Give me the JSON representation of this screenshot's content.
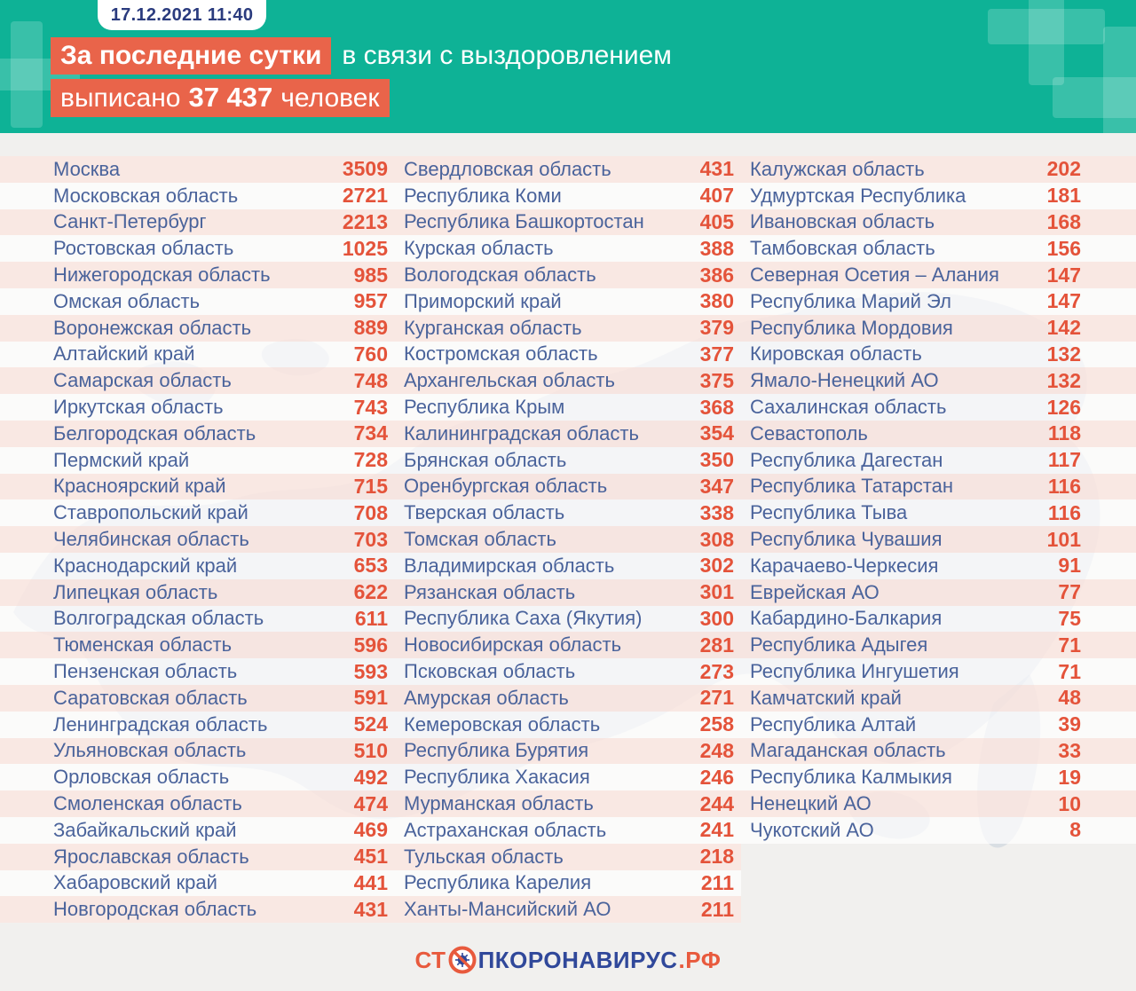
{
  "header": {
    "date_badge": "17.12.2021 11:40",
    "line1_highlight": "За последние сутки",
    "line1_rest": "в связи с выздоровлением",
    "line2_part1": "выписано",
    "line2_value": "37 437",
    "line2_part2": "человек"
  },
  "footer": {
    "logo_prefix": "СТ",
    "logo_middle": "ПКОРОНАВИРУС",
    "logo_suffix": ".РФ",
    "logo_icon": "no-virus-icon"
  },
  "icons": {
    "header_decoration": "plus-cross-icon",
    "logo": "no-virus-icon"
  },
  "colors": {
    "teal_background": "#0eb296",
    "highlight_orange": "#e9644a",
    "value_orange": "#e4533a",
    "region_navy": "#4a639b",
    "stripe_pink": "#fae6e0",
    "stripe_white": "#ffffff",
    "body_background": "#f1f0ee"
  },
  "chart_data": {
    "type": "table",
    "title": "За последние сутки в связи с выздоровлением выписано 37 437 человек",
    "date": "17.12.2021 11:40",
    "total_discharged": 37437,
    "columns": [
      {
        "rows": [
          {
            "region": "Москва",
            "value": 3509
          },
          {
            "region": "Московская область",
            "value": 2721
          },
          {
            "region": "Санкт-Петербург",
            "value": 2213
          },
          {
            "region": "Ростовская область",
            "value": 1025
          },
          {
            "region": "Нижегородская область",
            "value": 985
          },
          {
            "region": "Омская область",
            "value": 957
          },
          {
            "region": "Воронежская область",
            "value": 889
          },
          {
            "region": "Алтайский край",
            "value": 760
          },
          {
            "region": "Самарская область",
            "value": 748
          },
          {
            "region": "Иркутская область",
            "value": 743
          },
          {
            "region": "Белгородская область",
            "value": 734
          },
          {
            "region": "Пермский край",
            "value": 728
          },
          {
            "region": "Красноярский край",
            "value": 715
          },
          {
            "region": "Ставропольский край",
            "value": 708
          },
          {
            "region": "Челябинская область",
            "value": 703
          },
          {
            "region": "Краснодарский край",
            "value": 653
          },
          {
            "region": "Липецкая область",
            "value": 622
          },
          {
            "region": "Волгоградская область",
            "value": 611
          },
          {
            "region": "Тюменская область",
            "value": 596
          },
          {
            "region": "Пензенская область",
            "value": 593
          },
          {
            "region": "Саратовская область",
            "value": 591
          },
          {
            "region": "Ленинградская область",
            "value": 524
          },
          {
            "region": "Ульяновская область",
            "value": 510
          },
          {
            "region": "Орловская область",
            "value": 492
          },
          {
            "region": "Смоленская область",
            "value": 474
          },
          {
            "region": "Забайкальский край",
            "value": 469
          },
          {
            "region": "Ярославская область",
            "value": 451
          },
          {
            "region": "Хабаровский край",
            "value": 441
          },
          {
            "region": "Новгородская область",
            "value": 431
          }
        ]
      },
      {
        "rows": [
          {
            "region": "Свердловская область",
            "value": 431
          },
          {
            "region": "Республика Коми",
            "value": 407
          },
          {
            "region": "Республика Башкортостан",
            "value": 405
          },
          {
            "region": "Курская область",
            "value": 388
          },
          {
            "region": "Вологодская область",
            "value": 386
          },
          {
            "region": "Приморский край",
            "value": 380
          },
          {
            "region": "Курганская область",
            "value": 379
          },
          {
            "region": "Костромская область",
            "value": 377
          },
          {
            "region": "Архангельская область",
            "value": 375
          },
          {
            "region": "Республика Крым",
            "value": 368
          },
          {
            "region": "Калининградская область",
            "value": 354
          },
          {
            "region": "Брянская область",
            "value": 350
          },
          {
            "region": "Оренбургская область",
            "value": 347
          },
          {
            "region": "Тверская область",
            "value": 338
          },
          {
            "region": "Томская область",
            "value": 308
          },
          {
            "region": "Владимирская область",
            "value": 302
          },
          {
            "region": "Рязанская область",
            "value": 301
          },
          {
            "region": "Республика Саха (Якутия)",
            "value": 300
          },
          {
            "region": "Новосибирская область",
            "value": 281
          },
          {
            "region": "Псковская область",
            "value": 273
          },
          {
            "region": "Амурская область",
            "value": 271
          },
          {
            "region": "Кемеровская область",
            "value": 258
          },
          {
            "region": "Республика Бурятия",
            "value": 248
          },
          {
            "region": "Республика Хакасия",
            "value": 246
          },
          {
            "region": "Мурманская область",
            "value": 244
          },
          {
            "region": "Астраханская область",
            "value": 241
          },
          {
            "region": "Тульская область",
            "value": 218
          },
          {
            "region": "Республика Карелия",
            "value": 211
          },
          {
            "region": "Ханты-Мансийский АО",
            "value": 211
          }
        ]
      },
      {
        "rows": [
          {
            "region": "Калужская область",
            "value": 202
          },
          {
            "region": "Удмуртская Республика",
            "value": 181
          },
          {
            "region": "Ивановская область",
            "value": 168
          },
          {
            "region": "Тамбовская область",
            "value": 156
          },
          {
            "region": "Северная Осетия – Алания",
            "value": 147
          },
          {
            "region": "Республика Марий Эл",
            "value": 147
          },
          {
            "region": "Республика Мордовия",
            "value": 142
          },
          {
            "region": "Кировская область",
            "value": 132
          },
          {
            "region": "Ямало-Ненецкий АО",
            "value": 132
          },
          {
            "region": "Сахалинская область",
            "value": 126
          },
          {
            "region": "Севастополь",
            "value": 118
          },
          {
            "region": "Республика Дагестан",
            "value": 117
          },
          {
            "region": "Республика Татарстан",
            "value": 116
          },
          {
            "region": "Республика Тыва",
            "value": 116
          },
          {
            "region": "Республика Чувашия",
            "value": 101
          },
          {
            "region": "Карачаево-Черкесия",
            "value": 91
          },
          {
            "region": "Еврейская АО",
            "value": 77
          },
          {
            "region": "Кабардино-Балкария",
            "value": 75
          },
          {
            "region": "Республика Адыгея",
            "value": 71
          },
          {
            "region": "Республика Ингушетия",
            "value": 71
          },
          {
            "region": "Камчатский край",
            "value": 48
          },
          {
            "region": "Республика Алтай",
            "value": 39
          },
          {
            "region": "Магаданская область",
            "value": 33
          },
          {
            "region": "Республика Калмыкия",
            "value": 19
          },
          {
            "region": "Ненецкий АО",
            "value": 10
          },
          {
            "region": "Чукотский АО",
            "value": 8
          }
        ]
      }
    ]
  }
}
